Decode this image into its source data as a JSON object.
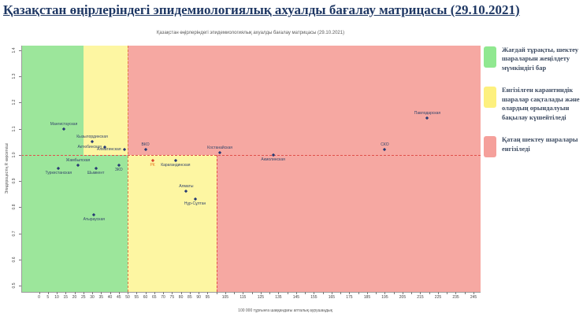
{
  "page": {
    "title": "Қазақстан өңірлеріндегі эпидемиологиялық ахуалды бағалау матрицасы  (29.10.2021)"
  },
  "chart_data": {
    "type": "scatter",
    "title": "Қазақстан өңірлеріндегі эпидемиологиялық ахуалды бағалау матрицасы  (29.10.2021)",
    "xlabel": "100 000 тұрғынға шаққандағы апталық аурушаңдық",
    "ylabel": "Эпидпроцестің R көрсеткіші",
    "xlim": [
      -10,
      249
    ],
    "ylim": [
      0.477,
      1.417
    ],
    "x_tick_step": 5,
    "x_tick_labels": [
      0,
      5,
      10,
      15,
      20,
      25,
      30,
      35,
      40,
      45,
      50,
      55,
      60,
      65,
      70,
      75,
      80,
      85,
      90,
      95,
      105,
      115,
      125,
      135,
      145,
      155,
      165,
      175,
      185,
      195,
      205,
      215,
      225,
      235,
      245
    ],
    "y_ticks": [
      0.5,
      0.6,
      0.7,
      0.8,
      0.9,
      1.0,
      1.1,
      1.2,
      1.3,
      1.4
    ],
    "grid": false,
    "legend_position": "right",
    "zone_colors": {
      "green": "#9ce69b",
      "yellow": "#fdf6a2",
      "red": "#f6a8a2"
    },
    "zones": [
      {
        "x": [
          -10,
          25
        ],
        "r": [
          1.0,
          1.417
        ],
        "color": "green"
      },
      {
        "x": [
          25,
          50
        ],
        "r": [
          1.0,
          1.417
        ],
        "color": "yellow"
      },
      {
        "x": [
          50,
          249
        ],
        "r": [
          1.0,
          1.417
        ],
        "color": "red"
      },
      {
        "x": [
          -10,
          50
        ],
        "r": [
          0.477,
          1.0
        ],
        "color": "green"
      },
      {
        "x": [
          50,
          100
        ],
        "r": [
          0.477,
          1.0
        ],
        "color": "yellow"
      },
      {
        "x": [
          100,
          249
        ],
        "r": [
          0.477,
          1.0
        ],
        "color": "red"
      }
    ],
    "threshold_lines": [
      {
        "axis": "h",
        "value": 1.0,
        "span": [
          -10,
          249
        ],
        "color": "#e0504a"
      },
      {
        "axis": "v",
        "value": 50,
        "span": [
          0.477,
          1.417
        ],
        "color": "#e07a4a"
      },
      {
        "axis": "v",
        "value": 100,
        "span": [
          0.477,
          1.0
        ],
        "color": "#e0504a"
      }
    ],
    "point_color": "#273a73",
    "label_color": "#34466b",
    "points": [
      {
        "label": "Мангистауская",
        "x": 14,
        "r": 1.1,
        "label_pos": "above"
      },
      {
        "label": "Кызылординская",
        "x": 30,
        "r": 1.05,
        "label_pos": "above"
      },
      {
        "label": "Актюбинская",
        "x": 37,
        "r": 1.03,
        "label_pos": "left"
      },
      {
        "label": "Алматинская",
        "x": 48,
        "r": 1.02,
        "label_pos": "left"
      },
      {
        "label": "Жамбылская",
        "x": 22,
        "r": 0.96,
        "label_pos": "above"
      },
      {
        "label": "Туркестанская",
        "x": 11,
        "r": 0.95,
        "label_pos": "below"
      },
      {
        "label": "Шымкент",
        "x": 32,
        "r": 0.95,
        "label_pos": "below"
      },
      {
        "label": "ЗКО",
        "x": 45,
        "r": 0.96,
        "label_pos": "below"
      },
      {
        "label": "Атырауская",
        "x": 31,
        "r": 0.77,
        "label_pos": "below"
      },
      {
        "label": "ВКО",
        "x": 60,
        "r": 1.02,
        "label_pos": "above"
      },
      {
        "label": "РК",
        "x": 64,
        "r": 0.98,
        "label_pos": "below",
        "color": "#d9442b",
        "label_color": "#e87722"
      },
      {
        "label": "Карагандинская",
        "x": 77,
        "r": 0.98,
        "label_pos": "below"
      },
      {
        "label": "Алматы",
        "x": 83,
        "r": 0.86,
        "label_pos": "above"
      },
      {
        "label": "Нұр-Сұлтан",
        "x": 88,
        "r": 0.83,
        "label_pos": "below"
      },
      {
        "label": "Костанайская",
        "x": 102,
        "r": 1.01,
        "label_pos": "above"
      },
      {
        "label": "Акмолинская",
        "x": 132,
        "r": 1.0,
        "label_pos": "below"
      },
      {
        "label": "СКО",
        "x": 195,
        "r": 1.02,
        "label_pos": "above"
      },
      {
        "label": "Павлодарская",
        "x": 219,
        "r": 1.14,
        "label_pos": "above"
      }
    ]
  },
  "legend": {
    "items": [
      {
        "color": "#90e890",
        "text": "Жағдай тұрақты, шектеу шараларын жеңілдету мүмкіндігі бар"
      },
      {
        "color": "#fdf07e",
        "text": "Енгізілген карантиндік шаралар сақталады және олардың орындалуын бақылау күшейтіледі"
      },
      {
        "color": "#f5a09b",
        "text": "Қатаң шектеу шаралары енгізіледі"
      }
    ]
  }
}
